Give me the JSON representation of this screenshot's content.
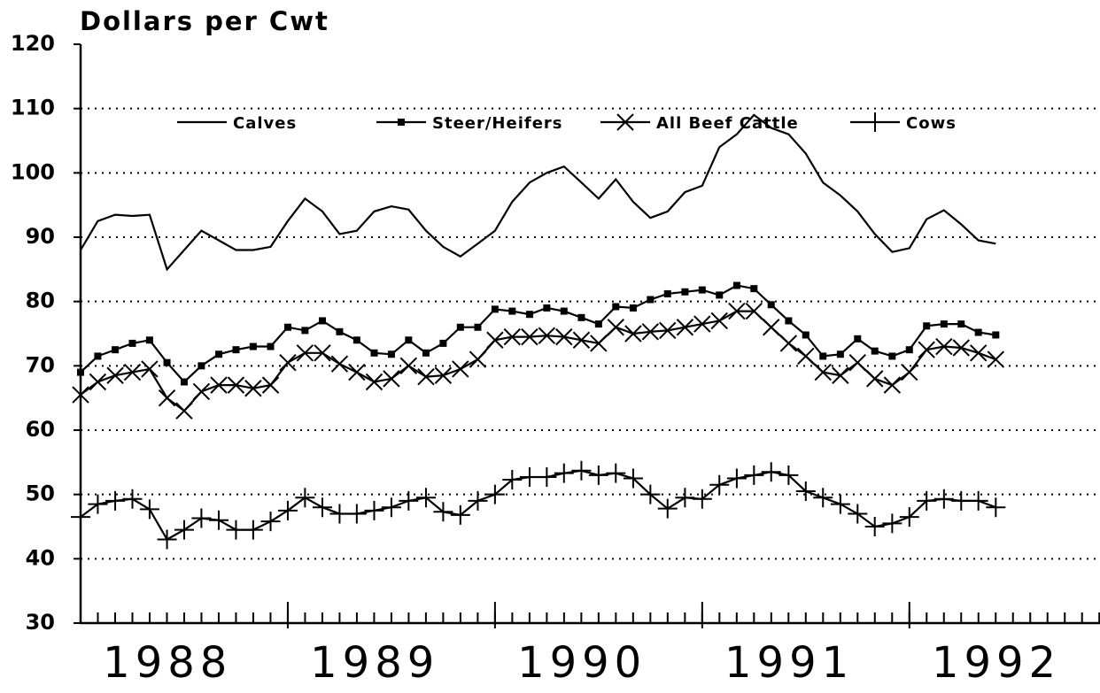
{
  "chart_data": {
    "type": "line",
    "title": "Dollars per Cwt",
    "x": [
      1988,
      1988.083,
      1988.167,
      1988.25,
      1988.333,
      1988.417,
      1988.5,
      1988.583,
      1988.667,
      1988.75,
      1988.833,
      1988.917,
      1989,
      1989.083,
      1989.167,
      1989.25,
      1989.333,
      1989.417,
      1989.5,
      1989.583,
      1989.667,
      1989.75,
      1989.833,
      1989.917,
      1990,
      1990.083,
      1990.167,
      1990.25,
      1990.333,
      1990.417,
      1990.5,
      1990.583,
      1990.667,
      1990.75,
      1990.833,
      1990.917,
      1991,
      1991.083,
      1991.167,
      1991.25,
      1991.333,
      1991.417,
      1991.5,
      1991.583,
      1991.667,
      1991.75,
      1991.833,
      1991.917,
      1992,
      1992.083,
      1992.167,
      1992.25,
      1992.333,
      1992.417
    ],
    "xlim": [
      1988,
      1992.92
    ],
    "xticks": [
      {
        "value": 1988,
        "label": "1988"
      },
      {
        "value": 1989,
        "label": "1989"
      },
      {
        "value": 1990,
        "label": "1990"
      },
      {
        "value": 1991,
        "label": "1991"
      },
      {
        "value": 1992,
        "label": "1992"
      }
    ],
    "ylim": [
      30,
      120
    ],
    "yticks": [
      30,
      40,
      50,
      60,
      70,
      80,
      90,
      100,
      110,
      120
    ],
    "grid": true,
    "legend": "top",
    "series": [
      {
        "name": "Calves",
        "color": "#000000",
        "marker": "none",
        "values": [
          88,
          92.5,
          93.5,
          93.3,
          93.5,
          85,
          88,
          91,
          89.5,
          88,
          88,
          88.5,
          92.5,
          96,
          94,
          90.5,
          91,
          94,
          94.8,
          94.3,
          91,
          88.5,
          87,
          89,
          91,
          95.5,
          98.5,
          100,
          101,
          98.5,
          96,
          99,
          95.5,
          93,
          94,
          97,
          98,
          104,
          106,
          109,
          107,
          106,
          103,
          98.5,
          96.5,
          94,
          90.5,
          87.7,
          88.3,
          92.8,
          94.2,
          92,
          89.5,
          89
        ]
      },
      {
        "name": "Steer/Heifers",
        "color": "#000000",
        "marker": "square",
        "values": [
          69,
          71.5,
          72.5,
          73.5,
          74,
          70.5,
          67.5,
          70,
          71.8,
          72.5,
          73,
          73,
          76,
          75.5,
          77,
          75.3,
          74,
          72,
          71.8,
          74,
          72,
          73.5,
          76,
          76,
          78.8,
          78.5,
          78,
          79,
          78.5,
          77.5,
          76.5,
          79.2,
          79,
          80.3,
          81.2,
          81.5,
          81.8,
          81,
          82.5,
          82,
          79.5,
          77,
          74.8,
          71.5,
          71.8,
          74.2,
          72.3,
          71.5,
          72.5,
          76.2,
          76.5,
          76.5,
          75.2,
          74.8
        ]
      },
      {
        "name": "All Beef Cattle",
        "color": "#000000",
        "marker": "x",
        "values": [
          65.5,
          67.5,
          68.5,
          69,
          69.5,
          65,
          63,
          66,
          67,
          67,
          66.5,
          67,
          70.5,
          72,
          72,
          70.3,
          69,
          67.5,
          68,
          70,
          68.3,
          68.5,
          69.5,
          71,
          74,
          74.5,
          74.5,
          74.7,
          74.5,
          74,
          73.5,
          76,
          75,
          75.3,
          75.5,
          76,
          76.5,
          77,
          78.5,
          78.5,
          76,
          73.5,
          71.5,
          69,
          68.5,
          70.5,
          68,
          67,
          69,
          72.5,
          73,
          72.8,
          72,
          71
        ]
      },
      {
        "name": "Cows",
        "color": "#000000",
        "marker": "plus",
        "values": [
          46.5,
          48.5,
          49,
          49.3,
          47.7,
          43,
          44.5,
          46.3,
          46,
          44.5,
          44.5,
          45.8,
          47.5,
          49.5,
          48,
          47,
          47,
          47.5,
          48,
          49,
          49.5,
          47.3,
          46.8,
          49,
          50,
          52.3,
          52.7,
          52.7,
          53.3,
          53.7,
          53,
          53.3,
          52.5,
          50,
          47.8,
          49.5,
          49.3,
          51.5,
          52.5,
          53,
          53.5,
          53,
          50.5,
          49.5,
          48.5,
          47,
          45,
          45.5,
          46.5,
          49,
          49.3,
          49,
          49,
          48
        ]
      }
    ]
  }
}
